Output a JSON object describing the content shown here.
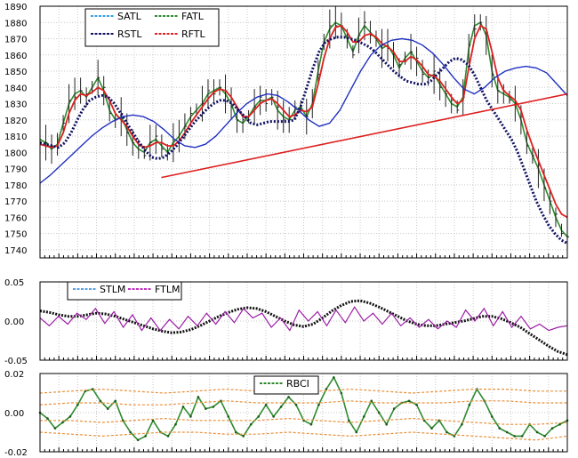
{
  "chart_data": [
    {
      "type": "line",
      "panel": "price",
      "ylim": [
        1735,
        1890
      ],
      "yticks": [
        1890,
        1880,
        1870,
        1860,
        1850,
        1840,
        1830,
        1820,
        1810,
        1800,
        1790,
        1780,
        1770,
        1760,
        1750,
        1740
      ],
      "grid": true,
      "legend": {
        "placement": "top-left",
        "entries": [
          "SATL",
          "FATL",
          "RSTL",
          "RFTL"
        ]
      },
      "colors": {
        "price_bars": "#222222",
        "SATL": "#3aa0e8",
        "FATL": "#2e8b2e",
        "RSTL": "#101060",
        "RFTL": "#dd2020",
        "STLM_trend": "#2030c0",
        "trendline": "#dd2020"
      },
      "series": [
        {
          "name": "FATL",
          "values": [
            1808,
            1806,
            1802,
            1805,
            1818,
            1830,
            1836,
            1838,
            1834,
            1840,
            1846,
            1838,
            1826,
            1820,
            1822,
            1814,
            1806,
            1802,
            1800,
            1806,
            1808,
            1804,
            1800,
            1806,
            1810,
            1816,
            1822,
            1826,
            1830,
            1836,
            1838,
            1840,
            1836,
            1830,
            1820,
            1818,
            1822,
            1828,
            1832,
            1832,
            1834,
            1826,
            1822,
            1820,
            1826,
            1828,
            1822,
            1830,
            1850,
            1868,
            1876,
            1880,
            1878,
            1870,
            1862,
            1872,
            1878,
            1874,
            1870,
            1864,
            1866,
            1860,
            1852,
            1858,
            1862,
            1856,
            1850,
            1846,
            1848,
            1842,
            1836,
            1830,
            1828,
            1834,
            1864,
            1878,
            1880,
            1872,
            1850,
            1838,
            1836,
            1834,
            1830,
            1820,
            1806,
            1798,
            1790,
            1780,
            1770,
            1760,
            1752,
            1748
          ]
        },
        {
          "name": "RFTL",
          "values": [
            1805,
            1804,
            1803,
            1804,
            1812,
            1824,
            1832,
            1836,
            1835,
            1837,
            1840,
            1838,
            1832,
            1824,
            1820,
            1816,
            1810,
            1805,
            1803,
            1804,
            1806,
            1806,
            1804,
            1804,
            1807,
            1812,
            1818,
            1823,
            1828,
            1833,
            1837,
            1839,
            1838,
            1834,
            1828,
            1822,
            1822,
            1826,
            1830,
            1832,
            1833,
            1830,
            1826,
            1822,
            1823,
            1826,
            1825,
            1828,
            1842,
            1858,
            1870,
            1877,
            1878,
            1874,
            1868,
            1868,
            1872,
            1873,
            1871,
            1867,
            1865,
            1862,
            1856,
            1856,
            1859,
            1857,
            1853,
            1848,
            1847,
            1844,
            1839,
            1834,
            1830,
            1832,
            1852,
            1870,
            1878,
            1876,
            1862,
            1846,
            1838,
            1835,
            1832,
            1826,
            1814,
            1804,
            1795,
            1786,
            1777,
            1768,
            1762,
            1760
          ]
        },
        {
          "name": "RSTL",
          "values": [
            1806,
            1805,
            1804,
            1803,
            1806,
            1812,
            1820,
            1827,
            1832,
            1834,
            1835,
            1834,
            1830,
            1824,
            1818,
            1812,
            1806,
            1801,
            1797,
            1796,
            1797,
            1800,
            1804,
            1809,
            1814,
            1819,
            1823,
            1827,
            1830,
            1832,
            1832,
            1830,
            1826,
            1822,
            1818,
            1817,
            1818,
            1819,
            1819,
            1819,
            1819,
            1820,
            1828,
            1840,
            1852,
            1862,
            1868,
            1870,
            1871,
            1871,
            1870,
            1869,
            1867,
            1865,
            1862,
            1858,
            1854,
            1850,
            1847,
            1844,
            1843,
            1842,
            1842,
            1844,
            1848,
            1852,
            1856,
            1858,
            1857,
            1854,
            1848,
            1840,
            1832,
            1826,
            1820,
            1814,
            1808,
            1800,
            1790,
            1780,
            1770,
            1762,
            1755,
            1750,
            1746,
            1744
          ]
        },
        {
          "name": "STLM_trend",
          "values": [
            1781,
            1786,
            1792,
            1798,
            1804,
            1810,
            1815,
            1819,
            1822,
            1823,
            1822,
            1819,
            1814,
            1808,
            1804,
            1803,
            1805,
            1810,
            1817,
            1824,
            1830,
            1834,
            1836,
            1835,
            1831,
            1826,
            1820,
            1816,
            1818,
            1826,
            1838,
            1850,
            1860,
            1866,
            1869,
            1870,
            1869,
            1866,
            1861,
            1854,
            1846,
            1839,
            1836,
            1840,
            1846,
            1850,
            1852,
            1853,
            1852,
            1849,
            1842,
            1835
          ]
        }
      ],
      "trendline": {
        "x": [
          0.23,
          1.0
        ],
        "y": [
          1784.5,
          1836
        ]
      }
    },
    {
      "type": "line",
      "panel": "oscillator",
      "ylim": [
        -0.05,
        0.05
      ],
      "yticks": [
        "0.05",
        "0.00",
        "-0.05"
      ],
      "grid": true,
      "legend": {
        "placement": "top-left",
        "entries": [
          "STLM",
          "FTLM"
        ]
      },
      "series": [
        {
          "name": "STLM",
          "values": [
            0.013,
            0.011,
            0.008,
            0.006,
            0.006,
            0.008,
            0.01,
            0.009,
            0.006,
            0.002,
            -0.002,
            -0.006,
            -0.01,
            -0.013,
            -0.015,
            -0.014,
            -0.011,
            -0.006,
            0.0,
            0.006,
            0.011,
            0.015,
            0.017,
            0.016,
            0.012,
            0.006,
            0.0,
            -0.005,
            -0.007,
            -0.004,
            0.004,
            0.013,
            0.02,
            0.025,
            0.026,
            0.023,
            0.018,
            0.012,
            0.006,
            0.0,
            -0.004,
            -0.006,
            -0.006,
            -0.004,
            -0.002,
            0.0,
            0.003,
            0.006,
            0.006,
            0.003,
            -0.002,
            -0.008,
            -0.016,
            -0.024,
            -0.032,
            -0.039,
            -0.043
          ]
        },
        {
          "name": "FTLM",
          "values": [
            0.004,
            -0.006,
            0.006,
            -0.004,
            0.01,
            0.002,
            0.016,
            -0.003,
            0.012,
            -0.008,
            0.008,
            -0.012,
            0.004,
            -0.012,
            0.002,
            -0.01,
            0.006,
            -0.006,
            0.01,
            -0.004,
            0.012,
            -0.002,
            0.016,
            0.004,
            0.01,
            -0.008,
            0.004,
            -0.012,
            0.014,
            0.0,
            0.012,
            -0.006,
            0.014,
            -0.002,
            0.018,
            0.0,
            0.01,
            -0.004,
            0.01,
            -0.006,
            0.004,
            -0.008,
            0.002,
            -0.01,
            0.0,
            -0.008,
            0.014,
            0.0,
            0.016,
            -0.006,
            0.012,
            -0.008,
            0.006,
            -0.01,
            -0.004,
            -0.012,
            -0.008,
            -0.006
          ]
        }
      ]
    },
    {
      "type": "line",
      "panel": "rbci",
      "ylim": [
        -0.02,
        0.02
      ],
      "yticks": [
        "0.02",
        "0.00",
        "-0.02"
      ],
      "grid": true,
      "legend": {
        "placement": "top-center",
        "entries": [
          "RBCI"
        ]
      },
      "series": [
        {
          "name": "RBCI",
          "values": [
            0.0,
            -0.003,
            -0.008,
            -0.005,
            -0.002,
            0.004,
            0.011,
            0.012,
            0.006,
            0.002,
            0.006,
            -0.004,
            -0.01,
            -0.014,
            -0.012,
            -0.004,
            -0.01,
            -0.012,
            -0.006,
            0.003,
            -0.002,
            0.008,
            0.002,
            0.003,
            0.006,
            -0.002,
            -0.01,
            -0.012,
            -0.006,
            -0.002,
            0.004,
            -0.002,
            0.003,
            0.008,
            0.004,
            -0.004,
            -0.006,
            0.004,
            0.012,
            0.018,
            0.01,
            -0.004,
            -0.01,
            -0.002,
            0.006,
            0.0,
            -0.006,
            0.002,
            0.005,
            0.006,
            0.004,
            -0.004,
            -0.008,
            -0.004,
            -0.01,
            -0.012,
            -0.006,
            0.004,
            0.012,
            0.006,
            -0.002,
            -0.008,
            -0.01,
            -0.012,
            -0.012,
            -0.006,
            -0.01,
            -0.012,
            -0.008,
            -0.006,
            -0.004
          ]
        },
        {
          "name": "band_upper_outer",
          "values": [
            0.01,
            0.011,
            0.012,
            0.011,
            0.01,
            0.011,
            0.012,
            0.011,
            0.01,
            0.011,
            0.012,
            0.011,
            0.01,
            0.011,
            0.012,
            0.012,
            0.011,
            0.011
          ]
        },
        {
          "name": "band_upper_inner",
          "values": [
            0.004,
            0.005,
            0.005,
            0.004,
            0.004,
            0.005,
            0.006,
            0.005,
            0.005,
            0.005,
            0.006,
            0.005,
            0.005,
            0.005,
            0.006,
            0.006,
            0.005,
            0.005
          ]
        },
        {
          "name": "band_lower_inner",
          "values": [
            -0.004,
            -0.004,
            -0.005,
            -0.004,
            -0.003,
            -0.004,
            -0.004,
            -0.004,
            -0.003,
            -0.004,
            -0.005,
            -0.004,
            -0.003,
            -0.004,
            -0.005,
            -0.006,
            -0.006,
            -0.005
          ]
        },
        {
          "name": "band_lower_outer",
          "values": [
            -0.01,
            -0.011,
            -0.012,
            -0.011,
            -0.01,
            -0.01,
            -0.011,
            -0.011,
            -0.01,
            -0.011,
            -0.012,
            -0.011,
            -0.01,
            -0.011,
            -0.012,
            -0.013,
            -0.014,
            -0.012
          ]
        }
      ],
      "colors": {
        "RBCI": "#2e8b2e",
        "bands": "#e8903a"
      }
    }
  ]
}
